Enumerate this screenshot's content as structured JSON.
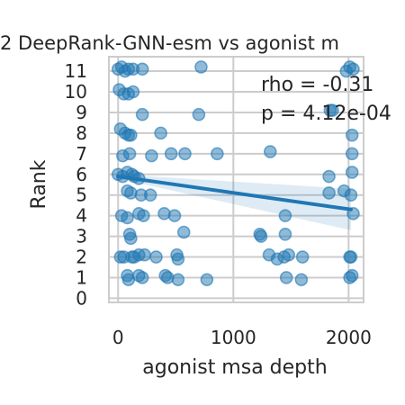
{
  "chart_data": {
    "type": "scatter",
    "title": "2 DeepRank-GNN-esm vs agonist m",
    "xlabel": "agonist msa depth",
    "ylabel": "Rank",
    "xlim": [
      -80,
      2130
    ],
    "ylim": [
      -0.2,
      11.7
    ],
    "xticks": [
      0,
      1000,
      2000
    ],
    "xtick_labels": [
      "0",
      "1000",
      "2000"
    ],
    "yticks": [
      0,
      1,
      2,
      3,
      4,
      5,
      6,
      7,
      8,
      9,
      10,
      11
    ],
    "ytick_labels": [
      "0",
      "1",
      "2",
      "3",
      "4",
      "5",
      "6",
      "7",
      "8",
      "9",
      "10",
      "11"
    ],
    "grid": true,
    "point_color": "#1f77b4",
    "annotations": [
      "rho = -0.31",
      "p = 4.12e-04"
    ],
    "regression": {
      "x": [
        0,
        2020
      ],
      "y": [
        5.9,
        4.3
      ],
      "ci_low_end": [
        5.45,
        3.3
      ],
      "ci_high_end": [
        6.35,
        5.3
      ]
    },
    "points": [
      {
        "x": 0,
        "y": 11.1
      },
      {
        "x": 30,
        "y": 11.2
      },
      {
        "x": 60,
        "y": 11.0
      },
      {
        "x": 90,
        "y": 11.1
      },
      {
        "x": 130,
        "y": 11.1
      },
      {
        "x": 210,
        "y": 11.1
      },
      {
        "x": 720,
        "y": 11.2
      },
      {
        "x": 1980,
        "y": 11.0
      },
      {
        "x": 2010,
        "y": 11.2
      },
      {
        "x": 2040,
        "y": 11.1
      },
      {
        "x": 10,
        "y": 10.1
      },
      {
        "x": 50,
        "y": 9.9
      },
      {
        "x": 90,
        "y": 9.9
      },
      {
        "x": 130,
        "y": 10.0
      },
      {
        "x": 210,
        "y": 8.9
      },
      {
        "x": 700,
        "y": 8.9
      },
      {
        "x": 1840,
        "y": 9.1
      },
      {
        "x": 1860,
        "y": 9.1
      },
      {
        "x": 20,
        "y": 8.2
      },
      {
        "x": 60,
        "y": 8.0
      },
      {
        "x": 90,
        "y": 7.9
      },
      {
        "x": 110,
        "y": 7.9
      },
      {
        "x": 370,
        "y": 8.0
      },
      {
        "x": 2030,
        "y": 7.9
      },
      {
        "x": 40,
        "y": 6.9
      },
      {
        "x": 100,
        "y": 7.0
      },
      {
        "x": 290,
        "y": 6.9
      },
      {
        "x": 460,
        "y": 7.0
      },
      {
        "x": 580,
        "y": 7.0
      },
      {
        "x": 860,
        "y": 7.0
      },
      {
        "x": 1320,
        "y": 7.1
      },
      {
        "x": 2030,
        "y": 7.0
      },
      {
        "x": 0,
        "y": 6.0
      },
      {
        "x": 40,
        "y": 5.9
      },
      {
        "x": 80,
        "y": 6.1
      },
      {
        "x": 120,
        "y": 6.0
      },
      {
        "x": 140,
        "y": 5.9
      },
      {
        "x": 180,
        "y": 5.8
      },
      {
        "x": 1830,
        "y": 5.9
      },
      {
        "x": 2030,
        "y": 6.1
      },
      {
        "x": 80,
        "y": 5.2
      },
      {
        "x": 110,
        "y": 5.1
      },
      {
        "x": 200,
        "y": 5.0
      },
      {
        "x": 280,
        "y": 5.0
      },
      {
        "x": 1830,
        "y": 5.1
      },
      {
        "x": 1960,
        "y": 5.2
      },
      {
        "x": 2020,
        "y": 5.0
      },
      {
        "x": 30,
        "y": 4.0
      },
      {
        "x": 80,
        "y": 3.9
      },
      {
        "x": 180,
        "y": 4.1
      },
      {
        "x": 220,
        "y": 4.0
      },
      {
        "x": 400,
        "y": 4.1
      },
      {
        "x": 490,
        "y": 4.0
      },
      {
        "x": 1450,
        "y": 4.0
      },
      {
        "x": 2040,
        "y": 4.1
      },
      {
        "x": 100,
        "y": 3.1
      },
      {
        "x": 110,
        "y": 2.9
      },
      {
        "x": 570,
        "y": 3.2
      },
      {
        "x": 1230,
        "y": 3.1
      },
      {
        "x": 1240,
        "y": 3.0
      },
      {
        "x": 1450,
        "y": 3.1
      },
      {
        "x": 20,
        "y": 2.0
      },
      {
        "x": 50,
        "y": 2.0
      },
      {
        "x": 120,
        "y": 2.0
      },
      {
        "x": 140,
        "y": 2.0
      },
      {
        "x": 180,
        "y": 2.1
      },
      {
        "x": 230,
        "y": 2.1
      },
      {
        "x": 330,
        "y": 2.0
      },
      {
        "x": 510,
        "y": 2.1
      },
      {
        "x": 520,
        "y": 1.9
      },
      {
        "x": 1310,
        "y": 2.1
      },
      {
        "x": 1380,
        "y": 1.9
      },
      {
        "x": 1440,
        "y": 2.0
      },
      {
        "x": 1480,
        "y": 2.1
      },
      {
        "x": 1600,
        "y": 2.0
      },
      {
        "x": 2010,
        "y": 2.0
      },
      {
        "x": 2020,
        "y": 2.0
      },
      {
        "x": 80,
        "y": 1.1
      },
      {
        "x": 90,
        "y": 0.9
      },
      {
        "x": 180,
        "y": 1.1
      },
      {
        "x": 210,
        "y": 1.0
      },
      {
        "x": 410,
        "y": 1.1
      },
      {
        "x": 430,
        "y": 1.0
      },
      {
        "x": 520,
        "y": 0.9
      },
      {
        "x": 770,
        "y": 0.9
      },
      {
        "x": 1460,
        "y": 1.0
      },
      {
        "x": 1590,
        "y": 0.9
      },
      {
        "x": 2010,
        "y": 1.0
      },
      {
        "x": 2030,
        "y": 1.1
      }
    ]
  }
}
